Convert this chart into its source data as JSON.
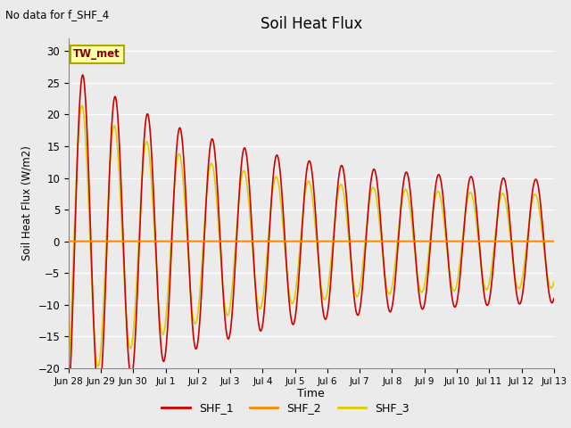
{
  "title": "Soil Heat Flux",
  "subtitle": "No data for f_SHF_4",
  "ylabel": "Soil Heat Flux (W/m2)",
  "xlabel": "Time",
  "annotation": "TW_met",
  "background_color": "#ebebeb",
  "plot_bg_color": "#ebebeb",
  "ylim": [
    -20,
    32
  ],
  "yticks": [
    -20,
    -15,
    -10,
    -5,
    0,
    5,
    10,
    15,
    20,
    25,
    30
  ],
  "legend": [
    "SHF_1",
    "SHF_2",
    "SHF_3"
  ],
  "colors": {
    "SHF_1": "#cc0000",
    "SHF_2": "#ff8800",
    "SHF_3": "#ddcc00"
  },
  "xtick_labels": [
    "Jun 28",
    "Jun 29",
    "Jun 30",
    "Jul 1",
    "Jul 2",
    "Jul 3",
    "Jul 4",
    "Jul 5",
    "Jul 6",
    "Jul 7",
    "Jul 8",
    "Jul 9",
    "Jul 10",
    "Jul 11",
    "Jul 12",
    "Jul 13"
  ],
  "xlim": [
    0,
    15
  ],
  "num_ticks": 16
}
